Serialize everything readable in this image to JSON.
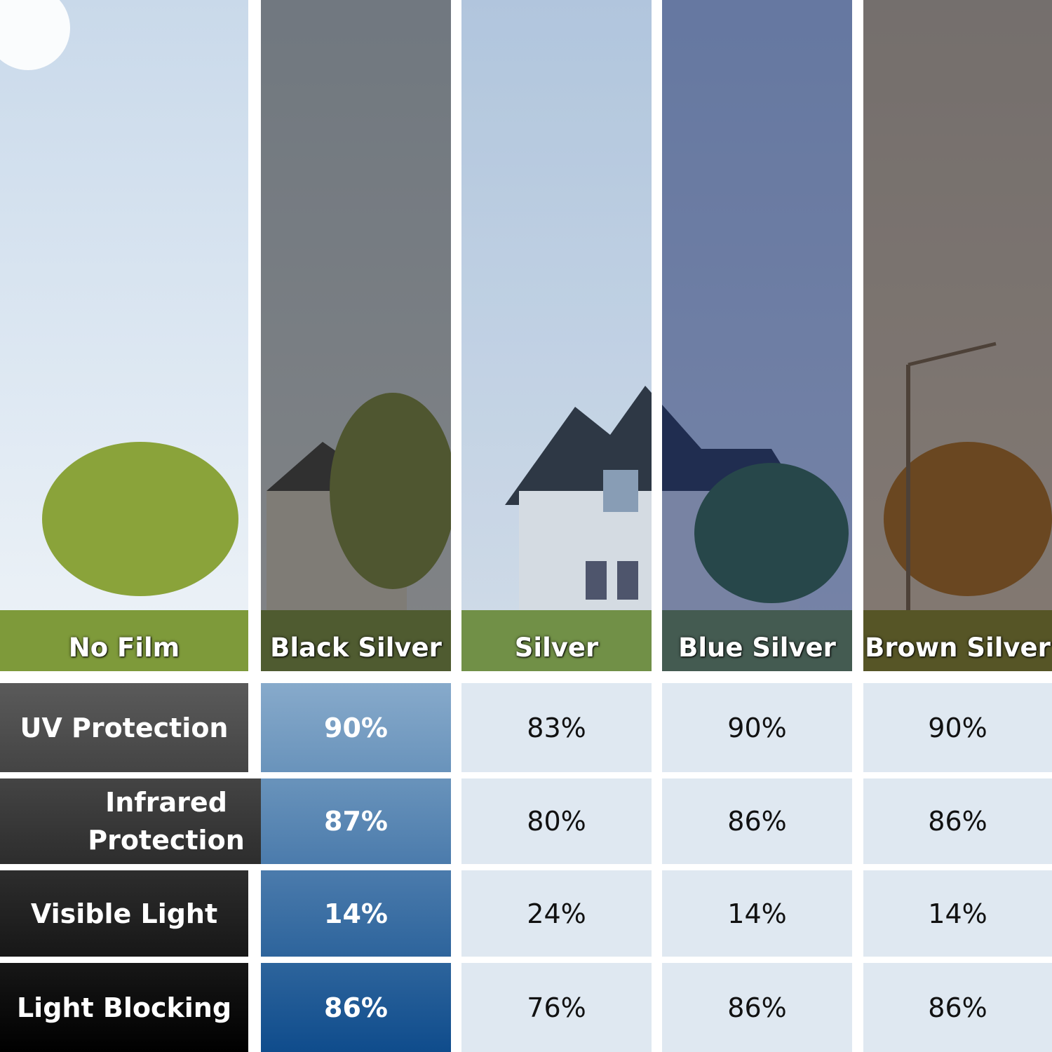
{
  "films": [
    {
      "name": "No Film",
      "tint": "rgba(0,0,0,0)"
    },
    {
      "name": "Black Silver",
      "tint": "rgba(40,40,40,0.55)"
    },
    {
      "name": "Silver",
      "tint": "rgba(40,90,150,0.15)"
    },
    {
      "name": "Blue Silver",
      "tint": "rgba(20,40,100,0.55)"
    },
    {
      "name": "Brown Silver",
      "tint": "rgba(60,40,25,0.6)"
    }
  ],
  "rows": [
    {
      "label": "UV Protection",
      "values": [
        "90%",
        "83%",
        "90%",
        "90%"
      ]
    },
    {
      "label": "Infrared Protection",
      "values": [
        "87%",
        "80%",
        "86%",
        "86%"
      ]
    },
    {
      "label": "Visible Light",
      "values": [
        "14%",
        "24%",
        "14%",
        "14%"
      ]
    },
    {
      "label": "Light Blocking",
      "values": [
        "86%",
        "76%",
        "86%",
        "86%"
      ]
    }
  ],
  "colors": {
    "highlight_top": "#87aacb",
    "highlight_bottom": "#0f4c8c",
    "cell_bg": "#dfe8f1",
    "label_top": "#5a5a5a",
    "label_bottom": "#000000"
  }
}
